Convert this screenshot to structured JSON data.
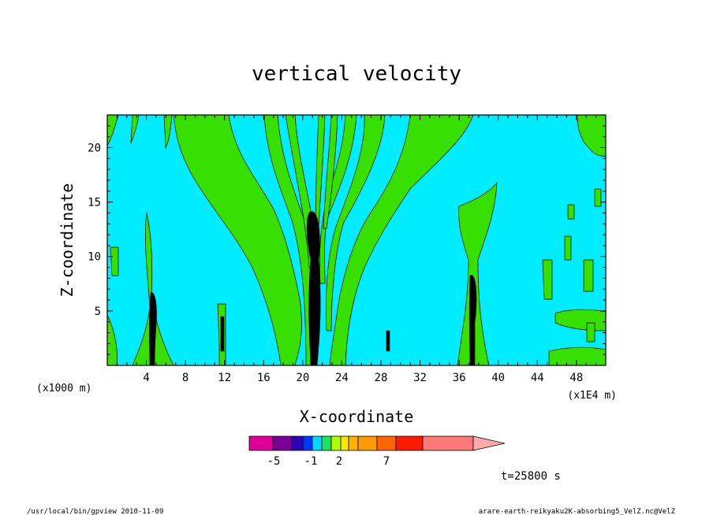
{
  "chart_data": {
    "type": "heatmap",
    "title": "vertical velocity",
    "xlabel": "X-coordinate",
    "ylabel": "Z-coordinate",
    "x_unit_label": "(x1000 m)",
    "x_scale_label": "(x1E4 m)",
    "xlim": [
      0,
      51
    ],
    "ylim": [
      0,
      23
    ],
    "x_ticks": [
      4,
      8,
      12,
      16,
      20,
      24,
      28,
      32,
      36,
      40,
      44,
      48
    ],
    "y_ticks": [
      5,
      10,
      15,
      20
    ],
    "colorbar": {
      "colors": [
        "#e00099",
        "#7a0099",
        "#2e00b8",
        "#0035ff",
        "#00d8ff",
        "#20e060",
        "#b0ff00",
        "#f8e800",
        "#ffb200",
        "#ff9a00",
        "#ff6400",
        "#ff1a00",
        "#ff7878"
      ],
      "extend_color": "#ffaaaa",
      "tick_labels": [
        "-5",
        "-1",
        "2",
        "7"
      ]
    },
    "field_colors": {
      "background": "#00ecff",
      "upward": "#38e000",
      "strong": "#000000"
    },
    "time_label": "t=25800 s"
  },
  "footer": {
    "left": "/usr/local/bin/gpview  2010-11-09",
    "right": "arare-earth-reikyaku2K-absorbing5_VelZ.nc@VelZ"
  }
}
